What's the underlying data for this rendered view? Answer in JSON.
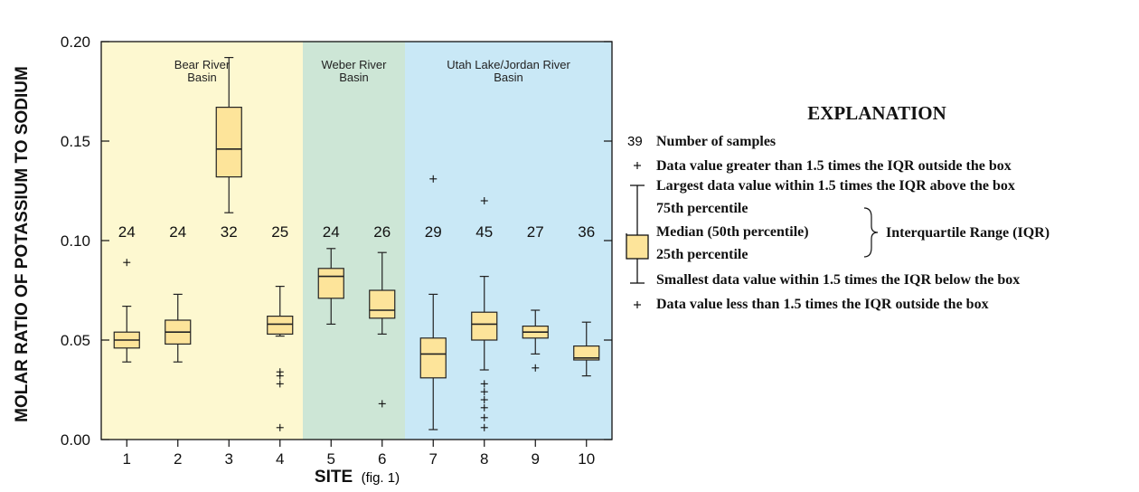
{
  "chart_data": {
    "type": "boxplot",
    "ylabel": "MOLAR RATIO OF POTASSIUM TO SODIUM",
    "xlabel": "SITE",
    "xlabel_suffix": "(fig. 1)",
    "ylim": [
      0,
      0.2
    ],
    "yticks": [
      "0.00",
      "0.05",
      "0.10",
      "0.15",
      "0.20"
    ],
    "categories": [
      "1",
      "2",
      "3",
      "4",
      "5",
      "6",
      "7",
      "8",
      "9",
      "10"
    ],
    "basins": [
      {
        "label_lines": [
          "Bear River",
          "Basin"
        ],
        "sites": [
          "1",
          "4"
        ],
        "color": "#fdf8d0"
      },
      {
        "label_lines": [
          "Weber River",
          "Basin"
        ],
        "sites": [
          "5",
          "6"
        ],
        "color": "#cde6d6"
      },
      {
        "label_lines": [
          "Utah Lake/Jordan River",
          "Basin"
        ],
        "sites": [
          "7",
          "10"
        ],
        "color": "#c9e8f6"
      }
    ],
    "boxes": [
      {
        "site": "1",
        "n": "24",
        "min": 0.039,
        "q1": 0.046,
        "median": 0.05,
        "q3": 0.054,
        "max": 0.067,
        "outliers": [
          0.089
        ]
      },
      {
        "site": "2",
        "n": "24",
        "min": 0.039,
        "q1": 0.048,
        "median": 0.054,
        "q3": 0.06,
        "max": 0.073,
        "outliers": []
      },
      {
        "site": "3",
        "n": "32",
        "min": 0.114,
        "q1": 0.132,
        "median": 0.146,
        "q3": 0.167,
        "max": 0.192,
        "outliers": []
      },
      {
        "site": "4",
        "n": "25",
        "min": 0.052,
        "q1": 0.053,
        "median": 0.058,
        "q3": 0.062,
        "max": 0.077,
        "outliers": [
          0.034,
          0.032,
          0.028,
          0.006
        ]
      },
      {
        "site": "5",
        "n": "24",
        "min": 0.058,
        "q1": 0.071,
        "median": 0.082,
        "q3": 0.086,
        "max": 0.096,
        "outliers": []
      },
      {
        "site": "6",
        "n": "26",
        "min": 0.053,
        "q1": 0.061,
        "median": 0.065,
        "q3": 0.075,
        "max": 0.094,
        "outliers": [
          0.018
        ]
      },
      {
        "site": "7",
        "n": "29",
        "min": 0.005,
        "q1": 0.031,
        "median": 0.043,
        "q3": 0.051,
        "max": 0.073,
        "outliers": [
          0.131
        ]
      },
      {
        "site": "8",
        "n": "45",
        "min": 0.035,
        "q1": 0.05,
        "median": 0.058,
        "q3": 0.064,
        "max": 0.082,
        "outliers": [
          0.12,
          0.028,
          0.024,
          0.02,
          0.016,
          0.011,
          0.006
        ]
      },
      {
        "site": "9",
        "n": "27",
        "min": 0.043,
        "q1": 0.051,
        "median": 0.054,
        "q3": 0.057,
        "max": 0.065,
        "outliers": [
          0.036
        ]
      },
      {
        "site": "10",
        "n": "36",
        "min": 0.032,
        "q1": 0.04,
        "median": 0.041,
        "q3": 0.047,
        "max": 0.059,
        "outliers": []
      }
    ],
    "box_fill": "#fde49a",
    "box_stroke": "#222222"
  },
  "explanation": {
    "title": "EXPLANATION",
    "samples_number": "39",
    "samples_label": "Number of samples",
    "outlier_high": "Data value greater than 1.5 times the IQR outside the box",
    "whisker_high": "Largest data value within 1.5 times the IQR above the box",
    "p75": "75th percentile",
    "median": "Median (50th percentile)",
    "p25": "25th percentile",
    "iqr": "Interquartile Range (IQR)",
    "whisker_low": "Smallest data value within 1.5 times the IQR below the box",
    "outlier_low": "Data value less than 1.5 times the IQR outside the box"
  }
}
